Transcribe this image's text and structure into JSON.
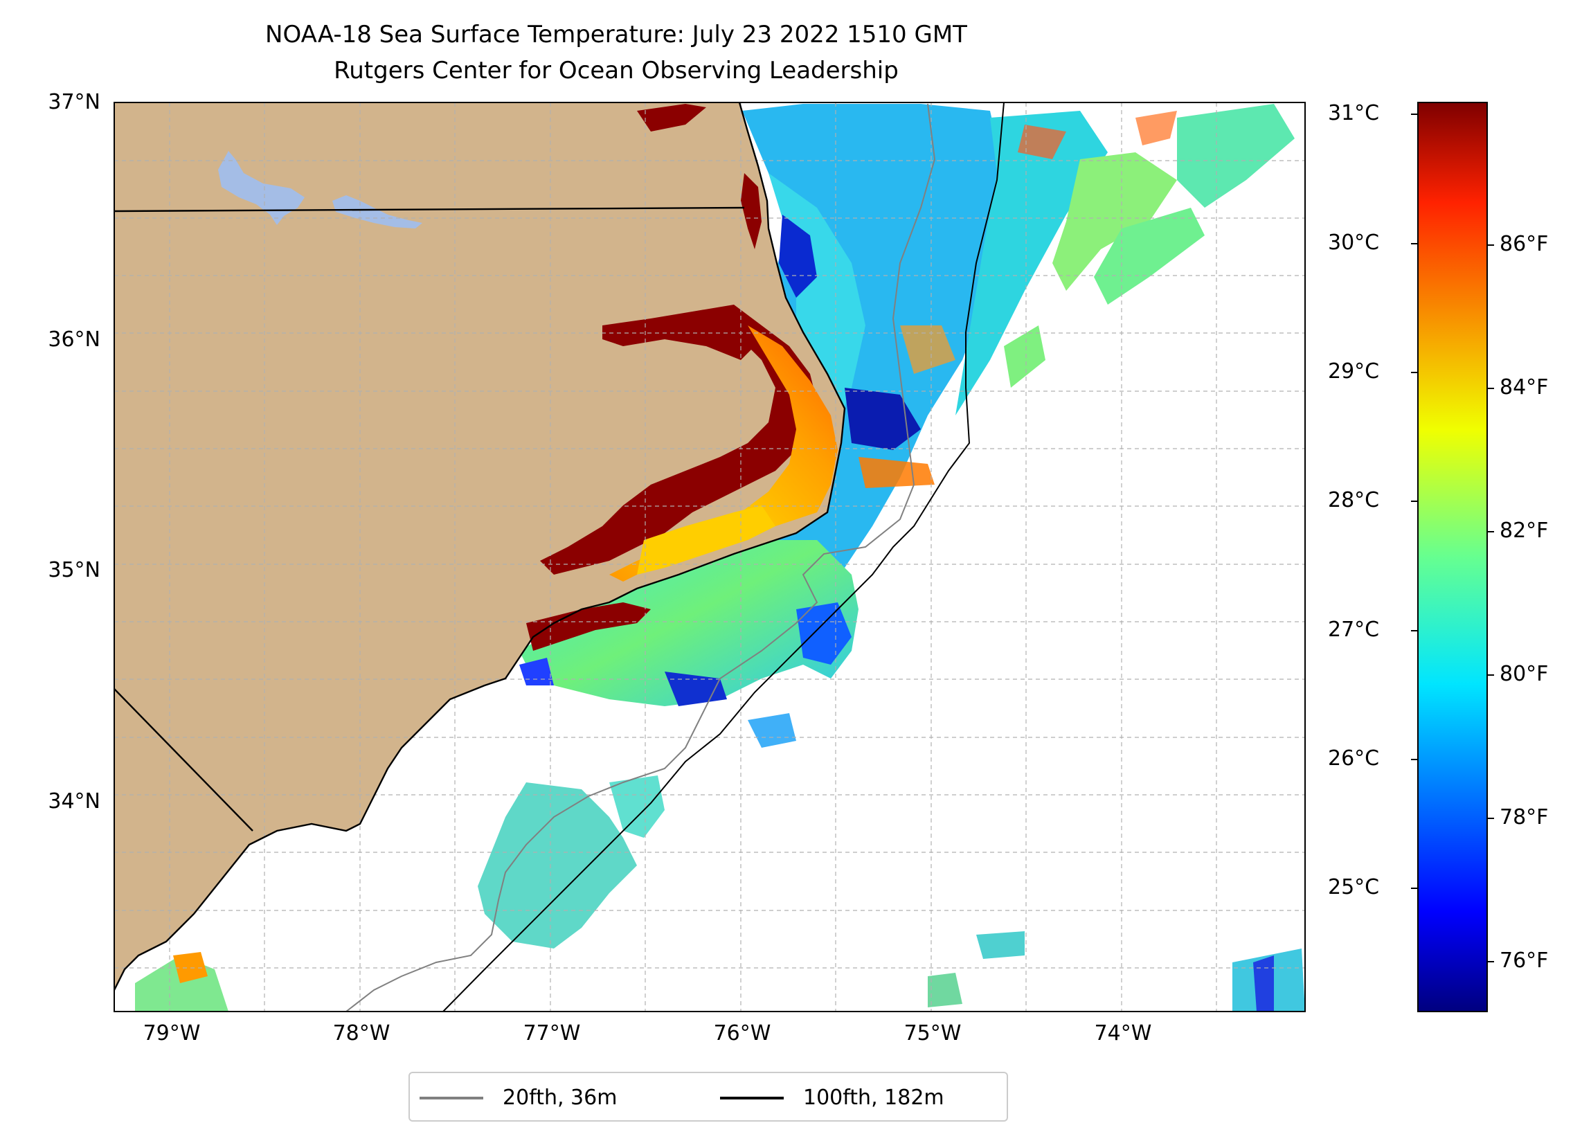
{
  "title": {
    "line1": "NOAA-18 Sea Surface Temperature: July 23 2022 1510 GMT",
    "line2": "Rutgers Center for Ocean Observing Leadership"
  },
  "map": {
    "lat_ticks": [
      "37°N",
      "36°N",
      "35°N",
      "34°N"
    ],
    "lon_ticks": [
      "79°W",
      "78°W",
      "77°W",
      "76°W",
      "75°W",
      "74°W"
    ],
    "colors": {
      "land": "#d2b48c",
      "lakes": "#a4bde6",
      "ocean": "#ffffff",
      "grid": "#b0b0b0",
      "isobath_20": "#808080",
      "isobath_100": "#000000"
    }
  },
  "colorbar": {
    "celsius_ticks": [
      "31°C",
      "30°C",
      "29°C",
      "28°C",
      "27°C",
      "26°C",
      "25°C"
    ],
    "fahrenheit_ticks": [
      "86°F",
      "84°F",
      "82°F",
      "80°F",
      "78°F",
      "76°F"
    ],
    "colormap": "jet"
  },
  "legend": {
    "items": [
      {
        "label": "20fth, 36m",
        "color": "#808080"
      },
      {
        "label": "100fth, 182m",
        "color": "#000000"
      }
    ]
  }
}
